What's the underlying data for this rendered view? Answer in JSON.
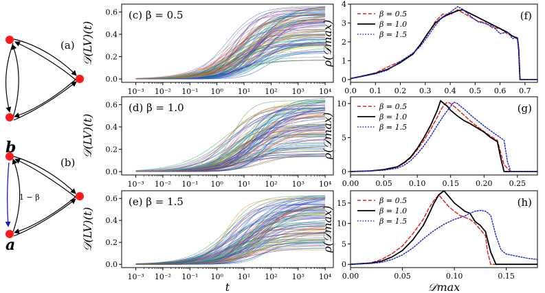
{
  "graphs": [
    {
      "label": "(a)",
      "node_labels": [
        "",
        ""
      ],
      "edge_label": ""
    },
    {
      "label": "(b)",
      "node_labels": [
        "b",
        "a"
      ],
      "edge_label": "1 − β"
    }
  ],
  "chart_data": [
    {
      "type": "line",
      "panel": "(c)",
      "title": "β = 0.5",
      "ylabel": "𝒟(LV)(t)",
      "xlabel": "",
      "xscale": "log",
      "xlim": [
        0.0003,
        20000
      ],
      "ylim": [
        -0.03,
        0.67
      ],
      "xticks": [
        "10⁻³",
        "10⁻²",
        "10⁻¹",
        "10⁰",
        "10¹",
        "10²",
        "10³",
        "10⁴"
      ],
      "yticks": [
        "0.0",
        "0.2",
        "0.4",
        "0.6"
      ],
      "n_trajectories": 100,
      "plateau_range": [
        0.16,
        0.66
      ],
      "midpoint_log10_t_range": [
        0.3,
        1.9
      ]
    },
    {
      "type": "line",
      "panel": "(d)",
      "title": "β = 1.0",
      "ylabel": "𝒟(LV)(t)",
      "xlabel": "",
      "xscale": "log",
      "xlim": [
        0.0003,
        20000
      ],
      "ylim": [
        -0.03,
        0.67
      ],
      "xticks": [
        "10⁻³",
        "10⁻²",
        "10⁻¹",
        "10⁰",
        "10¹",
        "10²",
        "10³",
        "10⁴"
      ],
      "yticks": [
        "0.0",
        "0.2",
        "0.4",
        "0.6"
      ],
      "n_trajectories": 100,
      "plateau_range": [
        0.13,
        0.66
      ],
      "midpoint_log10_t_range": [
        0.3,
        1.9
      ]
    },
    {
      "type": "line",
      "panel": "(e)",
      "title": "β = 1.5",
      "ylabel": "𝒟(LV)(t)",
      "xlabel": "t",
      "xscale": "log",
      "xlim": [
        0.0003,
        20000
      ],
      "ylim": [
        -0.03,
        0.67
      ],
      "xticks": [
        "10⁻³",
        "10⁻²",
        "10⁻¹",
        "10⁰",
        "10¹",
        "10²",
        "10³",
        "10⁴"
      ],
      "yticks": [
        "0.0",
        "0.2",
        "0.4",
        "0.6"
      ],
      "n_trajectories": 100,
      "plateau_range": [
        0.13,
        0.66
      ],
      "midpoint_log10_t_range": [
        0.3,
        1.9
      ]
    },
    {
      "type": "line",
      "panel": "(f)",
      "ylabel": "ρ(𝒟max)",
      "xlabel": "",
      "xlim": [
        0.0,
        0.75
      ],
      "ylim": [
        -0.15,
        4.0
      ],
      "xticks": [
        0.0,
        0.1,
        0.2,
        0.3,
        0.4,
        0.5,
        0.6,
        0.7
      ],
      "xtick_labels": [
        "0.0",
        "0.1",
        "0.2",
        "0.3",
        "0.4",
        "0.5",
        "0.6",
        "0.7"
      ],
      "yticks": [
        0,
        1,
        2,
        3,
        4
      ],
      "ytick_labels": [
        "0",
        "1",
        "2",
        "3",
        "4"
      ],
      "legend": [
        "β = 0.5",
        "β = 1.0",
        "β = 1.5"
      ],
      "legend_position": "top-left",
      "series": [
        {
          "name": "β = 0.5",
          "style": "dashed",
          "color": "#e3241b",
          "x": [
            0.0,
            0.05,
            0.1,
            0.15,
            0.2,
            0.25,
            0.28,
            0.31,
            0.34,
            0.37,
            0.4,
            0.43,
            0.45,
            0.48,
            0.51,
            0.54,
            0.57,
            0.6,
            0.63,
            0.65,
            0.67,
            0.675,
            0.68,
            0.75
          ],
          "y": [
            0.05,
            0.2,
            0.35,
            0.55,
            0.85,
            1.3,
            1.75,
            2.35,
            3.0,
            3.4,
            3.55,
            3.7,
            3.6,
            3.3,
            3.2,
            3.0,
            2.8,
            2.6,
            2.5,
            2.3,
            2.1,
            1.4,
            0.0,
            0.0
          ]
        },
        {
          "name": "β = 1.0",
          "style": "solid",
          "color": "#000000",
          "x": [
            0.0,
            0.05,
            0.1,
            0.15,
            0.2,
            0.25,
            0.28,
            0.31,
            0.34,
            0.37,
            0.4,
            0.43,
            0.45,
            0.48,
            0.51,
            0.54,
            0.57,
            0.6,
            0.63,
            0.65,
            0.67,
            0.675,
            0.68,
            0.75
          ],
          "y": [
            0.05,
            0.18,
            0.33,
            0.55,
            0.9,
            1.35,
            1.85,
            2.45,
            3.0,
            3.3,
            3.5,
            3.65,
            3.7,
            3.5,
            3.3,
            3.1,
            2.9,
            2.7,
            2.5,
            2.3,
            2.2,
            1.6,
            0.0,
            0.0
          ]
        },
        {
          "name": "β = 1.5",
          "style": "dotted",
          "color": "#1f2bd6",
          "x": [
            0.0,
            0.05,
            0.1,
            0.15,
            0.2,
            0.25,
            0.28,
            0.31,
            0.34,
            0.37,
            0.4,
            0.43,
            0.45,
            0.48,
            0.51,
            0.54,
            0.57,
            0.6,
            0.63,
            0.65,
            0.67,
            0.675,
            0.68,
            0.75
          ],
          "y": [
            0.04,
            0.17,
            0.3,
            0.5,
            0.85,
            1.3,
            1.8,
            2.3,
            2.9,
            3.3,
            3.55,
            3.75,
            3.65,
            3.4,
            3.15,
            3.0,
            2.8,
            2.55,
            2.45,
            2.25,
            2.1,
            1.5,
            0.0,
            0.0
          ]
        }
      ]
    },
    {
      "type": "line",
      "panel": "(g)",
      "ylabel": "ρ(𝒟max)",
      "xlabel": "",
      "xlim": [
        0.0,
        0.28
      ],
      "ylim": [
        -0.5,
        11.0
      ],
      "xticks": [
        0.0,
        0.05,
        0.1,
        0.15,
        0.2,
        0.25
      ],
      "xtick_labels": [
        "0.00",
        "0.05",
        "0.10",
        "0.15",
        "0.20",
        "0.25"
      ],
      "yticks": [
        0,
        5,
        10
      ],
      "ytick_labels": [
        "0",
        "5",
        "10"
      ],
      "legend": [
        "β = 0.5",
        "β = 1.0",
        "β = 1.5"
      ],
      "legend_position": "top-left",
      "series": [
        {
          "name": "β = 0.5",
          "style": "dashed",
          "color": "#e3241b",
          "x": [
            0.0,
            0.03,
            0.05,
            0.07,
            0.08,
            0.09,
            0.1,
            0.11,
            0.12,
            0.13,
            0.135,
            0.14,
            0.145,
            0.15,
            0.16,
            0.17,
            0.18,
            0.19,
            0.2,
            0.21,
            0.22,
            0.23,
            0.24,
            0.28
          ],
          "y": [
            0.0,
            0.1,
            0.3,
            0.7,
            1.2,
            2.0,
            3.2,
            4.6,
            6.2,
            8.0,
            9.0,
            9.8,
            10.2,
            10.0,
            9.2,
            8.3,
            7.4,
            6.6,
            5.9,
            5.2,
            4.6,
            1.0,
            0.0,
            0.0
          ]
        },
        {
          "name": "β = 1.0",
          "style": "solid",
          "color": "#000000",
          "x": [
            0.0,
            0.03,
            0.05,
            0.07,
            0.08,
            0.09,
            0.1,
            0.11,
            0.12,
            0.13,
            0.135,
            0.14,
            0.145,
            0.15,
            0.16,
            0.17,
            0.18,
            0.19,
            0.2,
            0.21,
            0.22,
            0.225,
            0.23,
            0.28
          ],
          "y": [
            0.0,
            0.1,
            0.3,
            0.7,
            1.3,
            2.1,
            3.4,
            5.0,
            6.8,
            9.0,
            10.4,
            10.0,
            9.6,
            9.0,
            8.2,
            7.5,
            7.0,
            6.4,
            5.8,
            5.0,
            4.4,
            2.0,
            0.0,
            0.0
          ]
        },
        {
          "name": "β = 1.5",
          "style": "dotted",
          "color": "#1f2bd6",
          "x": [
            0.0,
            0.03,
            0.05,
            0.07,
            0.08,
            0.09,
            0.1,
            0.11,
            0.12,
            0.13,
            0.14,
            0.15,
            0.155,
            0.16,
            0.17,
            0.18,
            0.19,
            0.2,
            0.21,
            0.22,
            0.23,
            0.235,
            0.24,
            0.28
          ],
          "y": [
            0.0,
            0.1,
            0.2,
            0.5,
            0.9,
            1.6,
            2.6,
            3.8,
            5.2,
            6.8,
            8.3,
            9.6,
            10.2,
            10.0,
            9.2,
            8.3,
            7.5,
            6.7,
            6.0,
            5.3,
            4.6,
            1.5,
            0.0,
            0.0
          ]
        }
      ]
    },
    {
      "type": "line",
      "panel": "(h)",
      "ylabel": "ρ(𝒟max)",
      "xlabel": "𝒟max",
      "xlim": [
        0.0,
        0.18
      ],
      "ylim": [
        -0.8,
        18.0
      ],
      "xticks": [
        0.0,
        0.05,
        0.1,
        0.15
      ],
      "xtick_labels": [
        "0.00",
        "0.05",
        "0.10",
        "0.15"
      ],
      "yticks": [
        0,
        5,
        10,
        15
      ],
      "ytick_labels": [
        "0",
        "5",
        "10",
        "15"
      ],
      "legend": [
        "β = 0.5",
        "β = 1.0",
        "β = 1.5"
      ],
      "legend_position": "top-left",
      "series": [
        {
          "name": "β = 0.5",
          "style": "dashed",
          "color": "#e3241b",
          "x": [
            0.0,
            0.02,
            0.03,
            0.04,
            0.05,
            0.06,
            0.07,
            0.075,
            0.08,
            0.085,
            0.09,
            0.095,
            0.1,
            0.105,
            0.11,
            0.115,
            0.12,
            0.125,
            0.13,
            0.132,
            0.135,
            0.18
          ],
          "y": [
            0.0,
            0.4,
            1.2,
            2.6,
            4.5,
            7.5,
            11.0,
            13.5,
            15.5,
            17.0,
            15.5,
            14.0,
            13.0,
            12.0,
            11.5,
            11.0,
            10.0,
            8.5,
            7.0,
            3.0,
            0.0,
            0.0
          ]
        },
        {
          "name": "β = 1.0",
          "style": "solid",
          "color": "#000000",
          "x": [
            0.0,
            0.02,
            0.03,
            0.04,
            0.05,
            0.06,
            0.07,
            0.075,
            0.08,
            0.085,
            0.09,
            0.095,
            0.1,
            0.105,
            0.11,
            0.115,
            0.12,
            0.125,
            0.13,
            0.135,
            0.14,
            0.18
          ],
          "y": [
            0.0,
            0.3,
            0.8,
            1.8,
            3.4,
            6.0,
            9.5,
            12.0,
            14.8,
            17.0,
            18.0,
            16.5,
            15.0,
            14.0,
            13.0,
            12.5,
            10.5,
            9.5,
            8.0,
            3.0,
            0.0,
            0.0
          ]
        },
        {
          "name": "β = 1.5",
          "style": "dotted",
          "color": "#1f2bd6",
          "x": [
            0.0,
            0.02,
            0.03,
            0.04,
            0.05,
            0.06,
            0.07,
            0.08,
            0.09,
            0.1,
            0.11,
            0.115,
            0.12,
            0.125,
            0.13,
            0.135,
            0.14,
            0.145,
            0.15,
            0.16,
            0.17,
            0.18
          ],
          "y": [
            0.0,
            0.2,
            0.5,
            1.2,
            2.3,
            4.0,
            6.2,
            8.2,
            9.8,
            11.0,
            11.8,
            12.5,
            13.0,
            13.2,
            13.0,
            12.0,
            7.0,
            3.5,
            2.5,
            2.0,
            1.5,
            1.2
          ]
        }
      ]
    }
  ]
}
